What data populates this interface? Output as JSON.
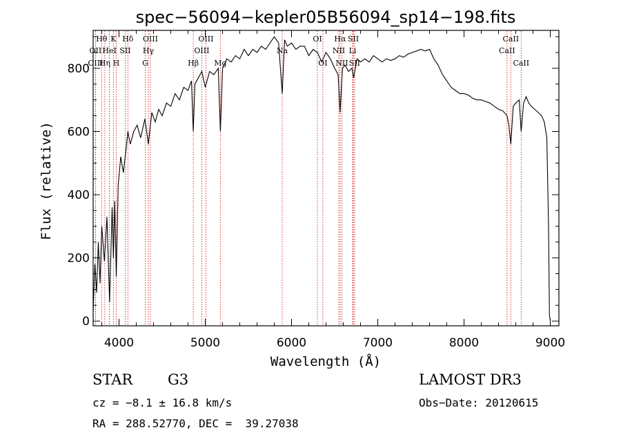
{
  "chart_data": {
    "type": "line",
    "title": "spec−56094−kepler05B56094_sp14−198.fits",
    "xlabel": "Wavelength (Å)",
    "ylabel": "Flux (relative)",
    "xlim": [
      3700,
      9100
    ],
    "ylim": [
      -15,
      920
    ],
    "xticks": [
      4000,
      5000,
      6000,
      7000,
      8000,
      9000
    ],
    "yticks": [
      0,
      200,
      400,
      600,
      800
    ],
    "series": [
      {
        "name": "flux",
        "x": [
          3700,
          3720,
          3740,
          3760,
          3780,
          3800,
          3830,
          3860,
          3890,
          3920,
          3935,
          3950,
          3968,
          3990,
          4020,
          4050,
          4080,
          4102,
          4130,
          4170,
          4210,
          4250,
          4300,
          4340,
          4380,
          4420,
          4460,
          4500,
          4550,
          4600,
          4650,
          4700,
          4750,
          4800,
          4840,
          4861,
          4880,
          4920,
          4960,
          5000,
          5050,
          5100,
          5150,
          5175,
          5200,
          5250,
          5300,
          5350,
          5400,
          5450,
          5500,
          5550,
          5600,
          5650,
          5700,
          5750,
          5800,
          5850,
          5892,
          5920,
          5950,
          6000,
          6050,
          6100,
          6150,
          6200,
          6250,
          6300,
          6350,
          6400,
          6450,
          6500,
          6540,
          6563,
          6590,
          6620,
          6660,
          6700,
          6720,
          6760,
          6800,
          6850,
          6900,
          6950,
          7000,
          7050,
          7100,
          7150,
          7200,
          7250,
          7300,
          7350,
          7400,
          7450,
          7500,
          7550,
          7600,
          7650,
          7700,
          7750,
          7800,
          7850,
          7900,
          7950,
          8000,
          8050,
          8100,
          8150,
          8200,
          8250,
          8300,
          8350,
          8400,
          8450,
          8498,
          8520,
          8542,
          8570,
          8600,
          8640,
          8662,
          8690,
          8720,
          8750,
          8780,
          8820,
          8860,
          8900,
          8930,
          8960,
          8980,
          8990,
          9000
        ],
        "y": [
          30,
          180,
          90,
          250,
          120,
          300,
          190,
          330,
          60,
          360,
          200,
          380,
          140,
          430,
          520,
          470,
          540,
          600,
          560,
          600,
          620,
          580,
          640,
          560,
          660,
          630,
          670,
          650,
          690,
          680,
          720,
          700,
          740,
          730,
          760,
          600,
          750,
          770,
          790,
          740,
          790,
          780,
          800,
          600,
          800,
          830,
          820,
          840,
          830,
          860,
          840,
          860,
          850,
          870,
          860,
          880,
          900,
          880,
          720,
          890,
          870,
          880,
          860,
          870,
          870,
          840,
          860,
          850,
          820,
          850,
          830,
          800,
          780,
          660,
          800,
          810,
          790,
          800,
          770,
          830,
          820,
          830,
          820,
          840,
          830,
          820,
          830,
          825,
          830,
          840,
          835,
          845,
          850,
          855,
          860,
          855,
          860,
          830,
          810,
          780,
          760,
          740,
          730,
          720,
          720,
          715,
          705,
          700,
          700,
          695,
          690,
          680,
          670,
          665,
          650,
          620,
          560,
          680,
          690,
          700,
          600,
          690,
          710,
          690,
          680,
          670,
          660,
          650,
          630,
          580,
          300,
          20,
          0
        ]
      }
    ],
    "spectral_lines": [
      {
        "label": "Hθ",
        "wavelength": 3798,
        "row": 0
      },
      {
        "label": "OII",
        "wavelength": 3727,
        "row": 1
      },
      {
        "label": "OIII",
        "wavelength": 3727,
        "row": 2
      },
      {
        "label": "K",
        "wavelength": 3934,
        "row": 0
      },
      {
        "label": "HeI",
        "wavelength": 3889,
        "row": 1
      },
      {
        "label": "Hη",
        "wavelength": 3835,
        "row": 2
      },
      {
        "label": "Hδ",
        "wavelength": 4102,
        "row": 0
      },
      {
        "label": "SII",
        "wavelength": 4072,
        "row": 1
      },
      {
        "label": "H",
        "wavelength": 3968,
        "row": 2
      },
      {
        "label": "OIII",
        "wavelength": 4363,
        "row": 0
      },
      {
        "label": "Hγ",
        "wavelength": 4340,
        "row": 1
      },
      {
        "label": "G",
        "wavelength": 4304,
        "row": 2
      },
      {
        "label": "Hβ",
        "wavelength": 4861,
        "row": 2
      },
      {
        "label": "OIII",
        "wavelength": 5007,
        "row": 0
      },
      {
        "label": "OIII",
        "wavelength": 4959,
        "row": 1
      },
      {
        "label": "Mg",
        "wavelength": 5175,
        "row": 2
      },
      {
        "label": "Na",
        "wavelength": 5892,
        "row": 1
      },
      {
        "label": "OI",
        "wavelength": 6300,
        "row": 0
      },
      {
        "label": "OI",
        "wavelength": 6363,
        "row": 2
      },
      {
        "label": "Hα",
        "wavelength": 6563,
        "row": 0
      },
      {
        "label": "NII",
        "wavelength": 6548,
        "row": 1
      },
      {
        "label": "NII",
        "wavelength": 6583,
        "row": 2
      },
      {
        "label": "SII",
        "wavelength": 6716,
        "row": 0
      },
      {
        "label": "Li",
        "wavelength": 6708,
        "row": 1
      },
      {
        "label": "SII",
        "wavelength": 6731,
        "row": 2
      },
      {
        "label": "CaII",
        "wavelength": 8542,
        "row": 0
      },
      {
        "label": "CaII",
        "wavelength": 8498,
        "row": 1
      },
      {
        "label": "CaII",
        "wavelength": 8662,
        "row": 2
      }
    ]
  },
  "info": {
    "object_type": "STAR",
    "subclass": "G3",
    "survey": "LAMOST DR3",
    "redshift": "cz = −8.1 ± 16.8 km/s",
    "obs_date": "Obs−Date: 20120615",
    "coords": "RA = 288.52770, DEC =  39.27038"
  },
  "colors": {
    "spectrum": "#000000",
    "line_marker": "#cc0000",
    "axes": "#000000"
  }
}
